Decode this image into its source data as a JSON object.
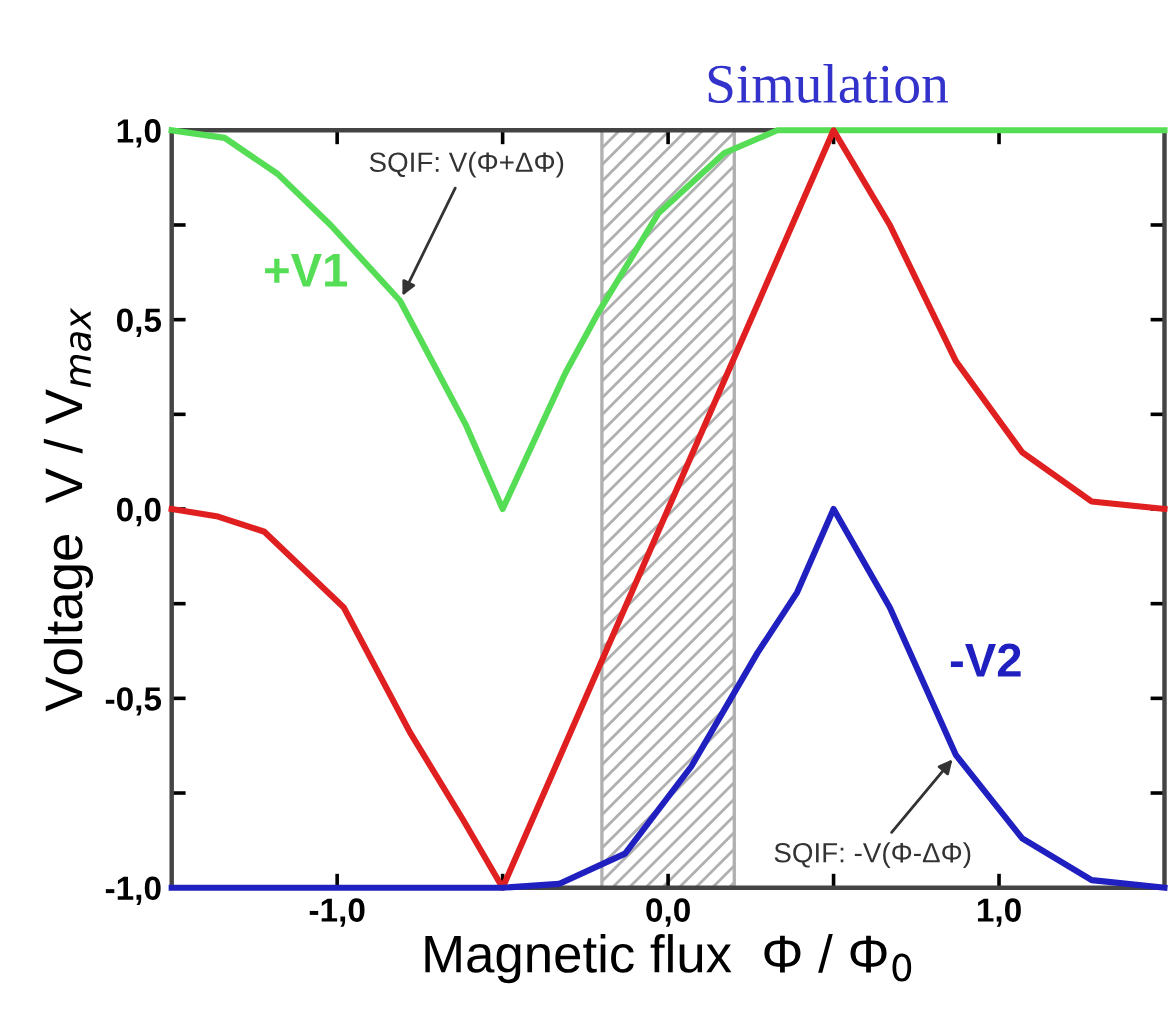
{
  "chart_data": {
    "type": "line",
    "title": "Simulation",
    "xlabel": "Magnetic flux  Φ / Φ$_{0}$",
    "ylabel": "Voltage  V / V$_{max}$",
    "xlim": [
      -1.5,
      1.5
    ],
    "ylim": [
      -1.0,
      1.0
    ],
    "xticks": [
      {
        "value": -1.0,
        "label": "-1,0"
      },
      {
        "value": -0.5,
        "label": null
      },
      {
        "value": 0.0,
        "label": "0,0"
      },
      {
        "value": 0.5,
        "label": null
      },
      {
        "value": 1.0,
        "label": "1,0"
      }
    ],
    "yticks": [
      {
        "value": -1.0,
        "label": "-1,0"
      },
      {
        "value": -0.75,
        "label": null
      },
      {
        "value": -0.5,
        "label": "-0,5"
      },
      {
        "value": -0.25,
        "label": null
      },
      {
        "value": 0.0,
        "label": "0,0"
      },
      {
        "value": 0.25,
        "label": null
      },
      {
        "value": 0.5,
        "label": "0,5"
      },
      {
        "value": 0.75,
        "label": null
      },
      {
        "value": 1.0,
        "label": "1,0"
      }
    ],
    "grid": false,
    "bands": [
      {
        "axis": "x",
        "from": -0.2,
        "to": 0.2,
        "color": "#b0b0b0"
      }
    ],
    "series": [
      {
        "name": "+V1",
        "color": "#55dd55",
        "x": [
          -1.5,
          -1.34,
          -1.18,
          -1.02,
          -0.81,
          -0.61,
          -0.5,
          -0.31,
          -0.21,
          -0.03,
          0.17,
          0.33,
          0.6,
          1.0,
          1.5
        ],
        "values": [
          1.0,
          0.98,
          0.885,
          0.75,
          0.55,
          0.22,
          0.0,
          0.36,
          0.52,
          0.78,
          0.94,
          1.0,
          1.0,
          1.0,
          1.0
        ]
      },
      {
        "color": "#e02020",
        "x": [
          -1.5,
          -1.36,
          -1.22,
          -0.98,
          -0.78,
          -0.62,
          -0.5,
          0.5,
          0.67,
          0.87,
          1.07,
          1.28,
          1.5
        ],
        "values": [
          0.0,
          -0.02,
          -0.06,
          -0.26,
          -0.59,
          -0.82,
          -1.0,
          1.0,
          0.75,
          0.39,
          0.15,
          0.02,
          0.0
        ]
      },
      {
        "name": "-V2",
        "color": "#2020c0",
        "x": [
          -1.5,
          -1.0,
          -0.5,
          -0.33,
          -0.13,
          0.07,
          0.27,
          0.39,
          0.5,
          0.67,
          0.87,
          1.07,
          1.28,
          1.5
        ],
        "values": [
          -1.0,
          -1.0,
          -1.0,
          -0.99,
          -0.91,
          -0.68,
          -0.38,
          -0.22,
          0.0,
          -0.26,
          -0.65,
          -0.87,
          -0.98,
          -1.0
        ]
      }
    ],
    "annotations": [
      {
        "text": "SQIF: V(Φ+ΔΦ)",
        "x": -0.81,
        "y": 0.55
      },
      {
        "text": "SQIF: -V(Φ-ΔΦ)",
        "x": 0.87,
        "y": -0.65
      }
    ]
  }
}
